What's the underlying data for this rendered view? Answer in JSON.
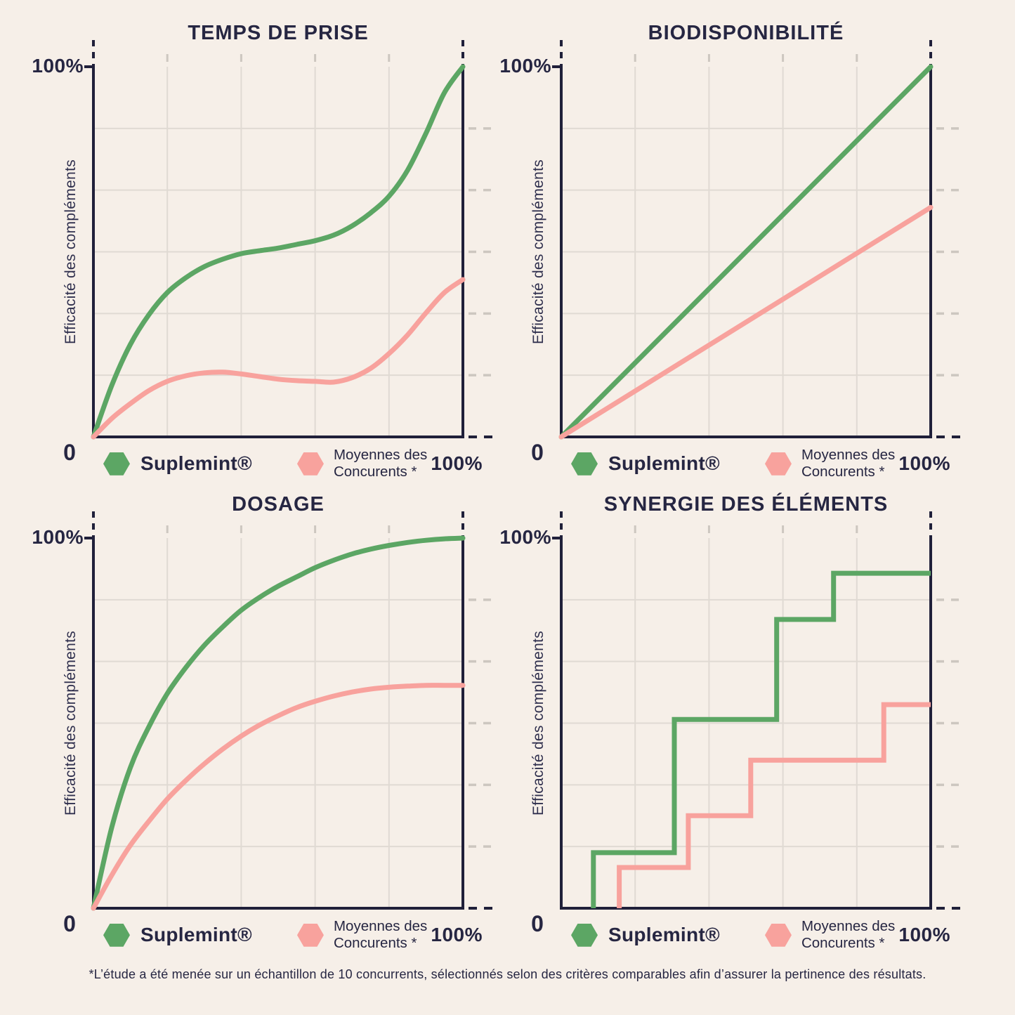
{
  "page": {
    "background": "#f6efe8",
    "footnote": "*L’étude a été menée sur un échantillon de 10 concurrents, sélectionnés selon des critères comparables afin d’assurer la pertinence des résultats."
  },
  "colors": {
    "background": "#f6efe8",
    "text_dark": "#262642",
    "axis": "#20203a",
    "grid": "#e0dad3",
    "grid_tick": "#cdc7c0",
    "series": {
      "green": "#5ca664",
      "pink": "#f8a29d"
    }
  },
  "legend": {
    "suplemint_label": "Suplemint®",
    "competitors_line1": "Moyennes des",
    "competitors_line2": "Concurents *"
  },
  "chart_data": [
    {
      "title": "TEMPS DE PRISE",
      "type": "line",
      "x_axis": {
        "min_label": "0",
        "max_label": "100%",
        "range": [
          0,
          100
        ]
      },
      "y_axis": {
        "label": "Efficacité des compléments",
        "max_label": "100%",
        "range": [
          0,
          100
        ]
      },
      "grid": {
        "v_divisions": 5,
        "h_divisions": 6
      },
      "series": [
        {
          "name": "Suplemint®",
          "color": "green",
          "points": [
            [
              0,
              0
            ],
            [
              5,
              14
            ],
            [
              10,
              25
            ],
            [
              15,
              33
            ],
            [
              20,
              39
            ],
            [
              25,
              43
            ],
            [
              30,
              46
            ],
            [
              35,
              48
            ],
            [
              40,
              49.5
            ],
            [
              45,
              50.3
            ],
            [
              50,
              51
            ],
            [
              55,
              52
            ],
            [
              60,
              53
            ],
            [
              65,
              54.5
            ],
            [
              70,
              57
            ],
            [
              75,
              60.5
            ],
            [
              80,
              65
            ],
            [
              85,
              72
            ],
            [
              90,
              82
            ],
            [
              95,
              93
            ],
            [
              100,
              100
            ]
          ]
        },
        {
          "name": "Moyennes des Concurents *",
          "color": "pink",
          "points": [
            [
              0,
              0
            ],
            [
              5,
              5
            ],
            [
              10,
              9
            ],
            [
              15,
              12.5
            ],
            [
              20,
              15
            ],
            [
              25,
              16.5
            ],
            [
              30,
              17.3
            ],
            [
              35,
              17.5
            ],
            [
              40,
              17
            ],
            [
              45,
              16.3
            ],
            [
              50,
              15.6
            ],
            [
              55,
              15.2
            ],
            [
              60,
              15
            ],
            [
              65,
              14.8
            ],
            [
              70,
              16
            ],
            [
              75,
              18.5
            ],
            [
              80,
              22.5
            ],
            [
              85,
              27.5
            ],
            [
              90,
              33.5
            ],
            [
              95,
              39
            ],
            [
              100,
              42.5
            ]
          ]
        }
      ]
    },
    {
      "title": "BIODISPONIBILITÉ",
      "type": "line",
      "x_axis": {
        "min_label": "0",
        "max_label": "100%",
        "range": [
          0,
          100
        ]
      },
      "y_axis": {
        "label": "Efficacité des compléments",
        "max_label": "100%",
        "range": [
          0,
          100
        ]
      },
      "grid": {
        "v_divisions": 5,
        "h_divisions": 6
      },
      "series": [
        {
          "name": "Suplemint®",
          "color": "green",
          "points": [
            [
              0,
              0
            ],
            [
              100,
              100
            ]
          ]
        },
        {
          "name": "Moyennes des Concurents *",
          "color": "pink",
          "points": [
            [
              0,
              0
            ],
            [
              100,
              62
            ]
          ]
        }
      ]
    },
    {
      "title": "DOSAGE",
      "type": "line",
      "x_axis": {
        "min_label": "0",
        "max_label": "100%",
        "range": [
          0,
          100
        ]
      },
      "y_axis": {
        "label": "Efficacité des compléments",
        "max_label": "100%",
        "range": [
          0,
          100
        ]
      },
      "grid": {
        "v_divisions": 5,
        "h_divisions": 6
      },
      "series": [
        {
          "name": "Suplemint®",
          "color": "green",
          "points": [
            [
              0,
              0
            ],
            [
              5,
              22
            ],
            [
              10,
              38
            ],
            [
              15,
              49
            ],
            [
              20,
              58
            ],
            [
              25,
              65
            ],
            [
              30,
              71
            ],
            [
              35,
              76
            ],
            [
              40,
              80.5
            ],
            [
              45,
              84
            ],
            [
              50,
              87
            ],
            [
              55,
              89.5
            ],
            [
              60,
              92
            ],
            [
              65,
              94
            ],
            [
              70,
              95.7
            ],
            [
              75,
              97
            ],
            [
              80,
              98
            ],
            [
              85,
              98.8
            ],
            [
              90,
              99.4
            ],
            [
              95,
              99.8
            ],
            [
              100,
              100
            ]
          ]
        },
        {
          "name": "Moyennes des Concurents *",
          "color": "pink",
          "points": [
            [
              0,
              0
            ],
            [
              5,
              9
            ],
            [
              10,
              17
            ],
            [
              15,
              23.5
            ],
            [
              20,
              29.5
            ],
            [
              25,
              34.5
            ],
            [
              30,
              39
            ],
            [
              35,
              43
            ],
            [
              40,
              46.5
            ],
            [
              45,
              49.5
            ],
            [
              50,
              52
            ],
            [
              55,
              54.2
            ],
            [
              60,
              55.9
            ],
            [
              65,
              57.3
            ],
            [
              70,
              58.4
            ],
            [
              75,
              59.2
            ],
            [
              80,
              59.7
            ],
            [
              85,
              60
            ],
            [
              90,
              60.2
            ],
            [
              95,
              60.2
            ],
            [
              100,
              60.2
            ]
          ]
        }
      ]
    },
    {
      "title": "SYNERGIE DES ÉLÉMENTS",
      "type": "step",
      "x_axis": {
        "min_label": "0",
        "max_label": "100%",
        "range": [
          0,
          100
        ]
      },
      "y_axis": {
        "label": "Efficacité des compléments",
        "max_label": "100%",
        "range": [
          0,
          100
        ]
      },
      "grid": {
        "v_divisions": 5,
        "h_divisions": 6
      },
      "series": [
        {
          "name": "Suplemint®",
          "color": "green",
          "points": [
            [
              8.7,
              0
            ],
            [
              8.7,
              15
            ],
            [
              30.6,
              15
            ],
            [
              30.6,
              51
            ],
            [
              58.3,
              51
            ],
            [
              58.3,
              78
            ],
            [
              73.7,
              78
            ],
            [
              73.7,
              90.5
            ],
            [
              100,
              90.5
            ]
          ]
        },
        {
          "name": "Moyennes des Concurents *",
          "color": "pink",
          "points": [
            [
              15.7,
              0
            ],
            [
              15.7,
              11
            ],
            [
              34.4,
              11
            ],
            [
              34.4,
              25
            ],
            [
              51.3,
              25
            ],
            [
              51.3,
              40
            ],
            [
              87.3,
              40
            ],
            [
              87.3,
              55
            ],
            [
              100,
              55
            ]
          ]
        }
      ]
    }
  ]
}
